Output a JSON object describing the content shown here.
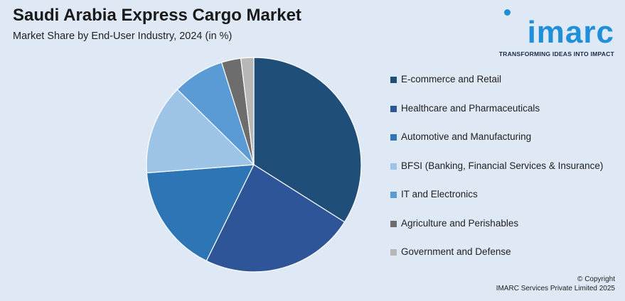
{
  "header": {
    "title": "Saudi Arabia Express Cargo Market",
    "subtitle": "Market Share by End-User Industry, 2024 (in %)"
  },
  "logo": {
    "word": "imarc",
    "tagline": "TRANSFORMING IDEAS INTO IMPACT",
    "color": "#1f8fd8"
  },
  "chart_data": {
    "type": "pie",
    "title": "Saudi Arabia Express Cargo Market",
    "subtitle": "Market Share by End-User Industry, 2024 (in %)",
    "legend_position": "right",
    "categories": [
      "E-commerce and Retail",
      "Healthcare and Pharmaceuticals",
      "Automotive and Manufacturing",
      "BFSI (Banking, Financial Services & Insurance)",
      "IT and Electronics",
      "Agriculture and Perishables",
      "Government and Defense"
    ],
    "values": [
      35,
      24,
      17,
      14,
      8,
      3,
      2
    ],
    "colors": [
      "#1f4e79",
      "#2e5597",
      "#2e75b6",
      "#9dc3e6",
      "#5b9bd5",
      "#6d6d6d",
      "#b7b7b7"
    ]
  },
  "footer": {
    "copyright_line1": "© Copyright",
    "copyright_line2": "IMARC Services Private Limited 2025"
  }
}
